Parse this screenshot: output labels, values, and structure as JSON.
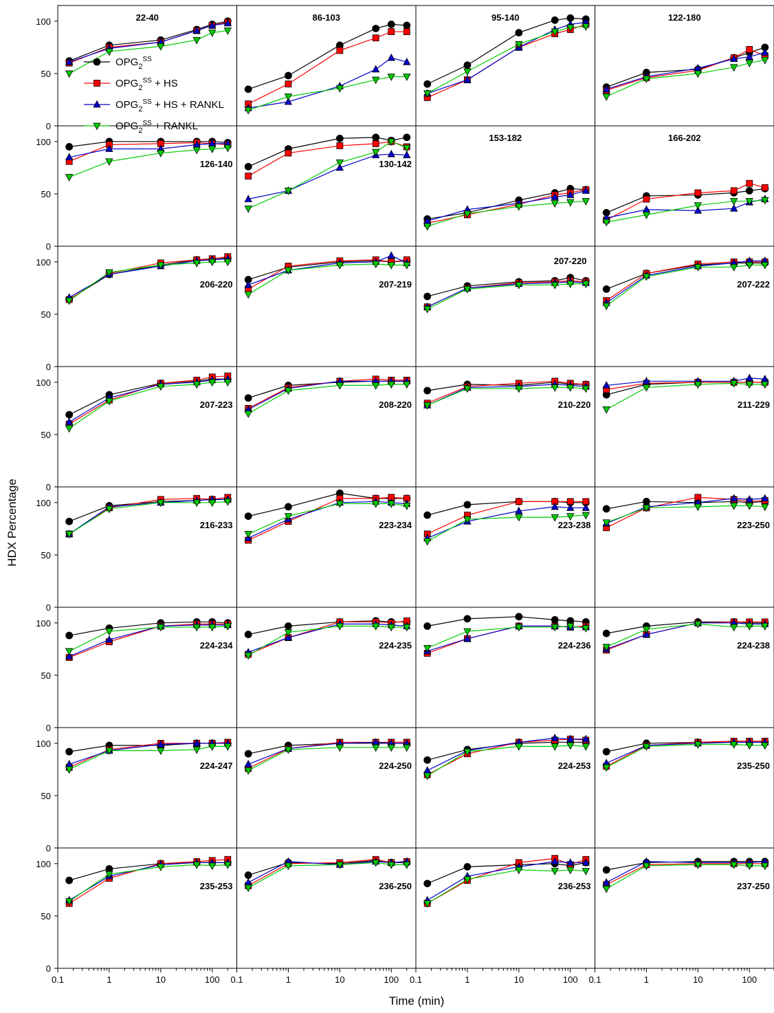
{
  "figure": {
    "ylabel": "HDX Percentage",
    "xlabel": "Time (min)"
  },
  "colors": {
    "OPG": "#000000",
    "OPG_HS": "#ff0000",
    "OPG_HS_RANKL": "#0000cc",
    "OPG_RANKL": "#00cc00"
  },
  "legend": [
    {
      "key": "OPG",
      "base": "OPG",
      "sub": "2",
      "sup": "SS",
      "suffix": "",
      "marker": "circle"
    },
    {
      "key": "OPG_HS",
      "base": "OPG",
      "sub": "2",
      "sup": "SS",
      "suffix": " + HS",
      "marker": "square"
    },
    {
      "key": "OPG_HS_RANKL",
      "base": "OPG",
      "sub": "2",
      "sup": "SS",
      "suffix": " + HS + RANKL",
      "marker": "triangle-up"
    },
    {
      "key": "OPG_RANKL",
      "base": "OPG",
      "sub": "2",
      "sup": "SS",
      "suffix": " + RANKL",
      "marker": "triangle-down"
    }
  ],
  "chart_data": {
    "type": "line",
    "layout": "grid 8 rows x 4 columns, shared axes",
    "x_scale": "log",
    "xlim": [
      0.1,
      300
    ],
    "x_ticks": [
      "0.1",
      "1",
      "10",
      "100"
    ],
    "ylim": [
      0,
      115
    ],
    "y_ticks": [
      "0",
      "50",
      "100"
    ],
    "x": [
      0.167,
      1,
      10,
      50,
      100,
      200
    ],
    "series_names": [
      "OPG_2^SS",
      "OPG_2^SS + HS",
      "OPG_2^SS + HS + RANKL",
      "OPG_2^SS + RANKL"
    ],
    "panels": [
      {
        "label": "22-40",
        "label_pos": "top",
        "OPG": [
          62,
          77,
          82,
          92,
          97,
          100
        ],
        "OPG_HS": [
          60,
          75,
          80,
          91,
          96,
          99
        ],
        "OPG_HS_RANKL": [
          61,
          74,
          80,
          91,
          96,
          98
        ],
        "OPG_RANKL": [
          50,
          71,
          76,
          82,
          89,
          91
        ]
      },
      {
        "label": "86-103",
        "label_pos": "top",
        "OPG": [
          35,
          48,
          77,
          93,
          97,
          96
        ],
        "OPG_HS": [
          21,
          40,
          72,
          84,
          90,
          90
        ],
        "OPG_HS_RANKL": [
          17,
          23,
          38,
          54,
          65,
          61
        ],
        "OPG_RANKL": [
          15,
          28,
          36,
          44,
          47,
          47
        ]
      },
      {
        "label": "95-140",
        "label_pos": "top",
        "OPG": [
          40,
          58,
          89,
          101,
          103,
          102
        ],
        "OPG_HS": [
          27,
          44,
          75,
          88,
          92,
          97
        ],
        "OPG_HS_RANKL": [
          31,
          44,
          75,
          92,
          97,
          99
        ],
        "OPG_RANKL": [
          31,
          52,
          78,
          90,
          94,
          95
        ]
      },
      {
        "label": "122-180",
        "label_pos": "top",
        "OPG": [
          37,
          51,
          54,
          65,
          70,
          75
        ],
        "OPG_HS": [
          34,
          46,
          53,
          65,
          73,
          67
        ],
        "OPG_HS_RANKL": [
          35,
          47,
          55,
          64,
          66,
          70
        ],
        "OPG_RANKL": [
          28,
          45,
          50,
          56,
          60,
          63
        ]
      },
      {
        "label": "126-140",
        "label_pos": "mid-right",
        "OPG": [
          95,
          100,
          100,
          100,
          100,
          99
        ],
        "OPG_HS": [
          81,
          97,
          98,
          99,
          98,
          97
        ],
        "OPG_HS_RANKL": [
          85,
          93,
          93,
          97,
          98,
          98
        ],
        "OPG_RANKL": [
          66,
          81,
          89,
          92,
          93,
          94
        ]
      },
      {
        "label": "130-142",
        "label_pos": "mid-right",
        "OPG": [
          76,
          93,
          103,
          104,
          101,
          104
        ],
        "OPG_HS": [
          67,
          89,
          96,
          98,
          100,
          95
        ],
        "OPG_HS_RANKL": [
          45,
          53,
          75,
          87,
          88,
          87
        ],
        "OPG_RANKL": [
          36,
          53,
          80,
          90,
          100,
          94
        ]
      },
      {
        "label": "153-182",
        "label_pos": "top",
        "OPG": [
          26,
          32,
          44,
          51,
          55,
          54
        ],
        "OPG_HS": [
          22,
          30,
          40,
          49,
          51,
          54
        ],
        "OPG_HS_RANKL": [
          24,
          35,
          41,
          47,
          49,
          53
        ],
        "OPG_RANKL": [
          19,
          31,
          38,
          41,
          42,
          43
        ]
      },
      {
        "label": "166-202",
        "label_pos": "top",
        "OPG": [
          32,
          48,
          49,
          51,
          53,
          55
        ],
        "OPG_HS": [
          25,
          45,
          51,
          53,
          60,
          56
        ],
        "OPG_HS_RANKL": [
          27,
          35,
          34,
          36,
          42,
          45
        ],
        "OPG_RANKL": [
          23,
          30,
          39,
          43,
          43,
          44
        ]
      },
      {
        "label": "206-220",
        "label_pos": "mid-right",
        "OPG": [
          64,
          88,
          97,
          102,
          102,
          104
        ],
        "OPG_HS": [
          64,
          89,
          99,
          102,
          103,
          105
        ],
        "OPG_HS_RANKL": [
          66,
          88,
          96,
          101,
          102,
          103
        ],
        "OPG_RANKL": [
          63,
          90,
          97,
          99,
          100,
          100
        ]
      },
      {
        "label": "207-219",
        "label_pos": "mid-right",
        "OPG": [
          83,
          95,
          100,
          101,
          100,
          101
        ],
        "OPG_HS": [
          74,
          96,
          101,
          102,
          100,
          102
        ],
        "OPG_HS_RANKL": [
          78,
          92,
          99,
          100,
          106,
          99
        ],
        "OPG_RANKL": [
          69,
          92,
          97,
          98,
          97,
          97
        ]
      },
      {
        "label": "207-220",
        "label_pos": "top-right",
        "OPG": [
          67,
          77,
          81,
          82,
          85,
          82
        ],
        "OPG_HS": [
          57,
          75,
          80,
          81,
          82,
          81
        ],
        "OPG_HS_RANKL": [
          57,
          75,
          79,
          80,
          81,
          80
        ],
        "OPG_RANKL": [
          55,
          74,
          78,
          78,
          79,
          79
        ]
      },
      {
        "label": "207-222",
        "label_pos": "mid-right",
        "OPG": [
          74,
          89,
          97,
          99,
          99,
          99
        ],
        "OPG_HS": [
          63,
          89,
          98,
          100,
          100,
          100
        ],
        "OPG_HS_RANKL": [
          61,
          87,
          96,
          99,
          101,
          101
        ],
        "OPG_RANKL": [
          58,
          86,
          95,
          95,
          97,
          97
        ]
      },
      {
        "label": "207-223",
        "label_pos": "mid-right",
        "OPG": [
          69,
          88,
          99,
          101,
          103,
          103
        ],
        "OPG_HS": [
          60,
          83,
          99,
          102,
          105,
          106
        ],
        "OPG_HS_RANKL": [
          62,
          85,
          98,
          100,
          102,
          103
        ],
        "OPG_RANKL": [
          56,
          82,
          96,
          98,
          100,
          100
        ]
      },
      {
        "label": "208-220",
        "label_pos": "mid-right",
        "OPG": [
          85,
          97,
          100,
          101,
          101,
          101
        ],
        "OPG_HS": [
          75,
          95,
          101,
          103,
          102,
          102
        ],
        "OPG_HS_RANKL": [
          74,
          94,
          101,
          101,
          101,
          101
        ],
        "OPG_RANKL": [
          70,
          92,
          97,
          97,
          98,
          98
        ]
      },
      {
        "label": "210-220",
        "label_pos": "mid-right",
        "OPG": [
          92,
          98,
          97,
          100,
          98,
          98
        ],
        "OPG_HS": [
          80,
          96,
          99,
          101,
          99,
          98
        ],
        "OPG_HS_RANKL": [
          78,
          95,
          96,
          98,
          97,
          96
        ],
        "OPG_RANKL": [
          78,
          94,
          94,
          95,
          95,
          94
        ]
      },
      {
        "label": "211-229",
        "label_pos": "mid-right",
        "OPG": [
          88,
          98,
          100,
          100,
          100,
          100
        ],
        "OPG_HS": [
          93,
          99,
          100,
          100,
          100,
          100
        ],
        "OPG_HS_RANKL": [
          97,
          101,
          101,
          101,
          104,
          103
        ],
        "OPG_RANKL": [
          74,
          95,
          98,
          99,
          98,
          98
        ]
      },
      {
        "label": "216-233",
        "label_pos": "mid-right",
        "OPG": [
          82,
          97,
          101,
          102,
          103,
          103
        ],
        "OPG_HS": [
          70,
          95,
          103,
          104,
          103,
          105
        ],
        "OPG_HS_RANKL": [
          70,
          96,
          100,
          102,
          103,
          103
        ],
        "OPG_RANKL": [
          70,
          94,
          100,
          100,
          100,
          101
        ]
      },
      {
        "label": "223-234",
        "label_pos": "mid-right",
        "OPG": [
          87,
          96,
          109,
          104,
          104,
          104
        ],
        "OPG_HS": [
          64,
          82,
          104,
          104,
          105,
          104
        ],
        "OPG_HS_RANKL": [
          66,
          84,
          100,
          101,
          100,
          99
        ],
        "OPG_RANKL": [
          70,
          87,
          99,
          99,
          99,
          97
        ]
      },
      {
        "label": "223-238",
        "label_pos": "mid-right",
        "OPG": [
          88,
          98,
          101,
          101,
          100,
          100
        ],
        "OPG_HS": [
          70,
          88,
          101,
          101,
          101,
          101
        ],
        "OPG_HS_RANKL": [
          66,
          82,
          92,
          96,
          95,
          95
        ],
        "OPG_RANKL": [
          63,
          84,
          86,
          86,
          87,
          88
        ]
      },
      {
        "label": "223-250",
        "label_pos": "mid-right",
        "OPG": [
          94,
          101,
          100,
          101,
          100,
          101
        ],
        "OPG_HS": [
          76,
          95,
          105,
          103,
          101,
          102
        ],
        "OPG_HS_RANKL": [
          80,
          96,
          100,
          104,
          103,
          104
        ],
        "OPG_RANKL": [
          81,
          95,
          96,
          97,
          97,
          96
        ]
      },
      {
        "label": "224-234",
        "label_pos": "mid-right",
        "OPG": [
          88,
          95,
          100,
          101,
          101,
          100
        ],
        "OPG_HS": [
          67,
          82,
          97,
          99,
          99,
          99
        ],
        "OPG_HS_RANKL": [
          68,
          84,
          97,
          98,
          98,
          98
        ],
        "OPG_RANKL": [
          73,
          92,
          96,
          96,
          96,
          97
        ]
      },
      {
        "label": "224-235",
        "label_pos": "mid-right",
        "OPG": [
          89,
          97,
          101,
          102,
          101,
          101
        ],
        "OPG_HS": [
          70,
          86,
          101,
          101,
          100,
          102
        ],
        "OPG_HS_RANKL": [
          72,
          86,
          99,
          99,
          98,
          97
        ],
        "OPG_RANKL": [
          69,
          91,
          97,
          97,
          96,
          96
        ]
      },
      {
        "label": "224-236",
        "label_pos": "mid-right",
        "OPG": [
          97,
          104,
          106,
          103,
          102,
          101
        ],
        "OPG_HS": [
          71,
          85,
          97,
          97,
          96,
          97
        ],
        "OPG_HS_RANKL": [
          73,
          85,
          97,
          97,
          96,
          96
        ],
        "OPG_RANKL": [
          76,
          92,
          96,
          96,
          97,
          95
        ]
      },
      {
        "label": "224-238",
        "label_pos": "mid-right",
        "OPG": [
          90,
          97,
          101,
          101,
          100,
          100
        ],
        "OPG_HS": [
          74,
          89,
          100,
          101,
          101,
          101
        ],
        "OPG_HS_RANKL": [
          75,
          89,
          100,
          100,
          99,
          99
        ],
        "OPG_RANKL": [
          77,
          94,
          99,
          96,
          97,
          97
        ]
      },
      {
        "label": "224-247",
        "label_pos": "mid-right",
        "OPG": [
          92,
          98,
          98,
          100,
          100,
          100
        ],
        "OPG_HS": [
          77,
          94,
          100,
          100,
          100,
          101
        ],
        "OPG_HS_RANKL": [
          80,
          93,
          99,
          100,
          100,
          100
        ],
        "OPG_RANKL": [
          75,
          93,
          93,
          94,
          97,
          97
        ]
      },
      {
        "label": "224-250",
        "label_pos": "mid-right",
        "OPG": [
          90,
          98,
          100,
          100,
          100,
          100
        ],
        "OPG_HS": [
          76,
          95,
          101,
          101,
          101,
          101
        ],
        "OPG_HS_RANKL": [
          80,
          95,
          100,
          101,
          100,
          100
        ],
        "OPG_RANKL": [
          74,
          94,
          96,
          96,
          96,
          96
        ]
      },
      {
        "label": "224-253",
        "label_pos": "mid-right",
        "OPG": [
          84,
          94,
          100,
          101,
          101,
          101
        ],
        "OPG_HS": [
          70,
          90,
          101,
          103,
          104,
          103
        ],
        "OPG_HS_RANKL": [
          74,
          93,
          101,
          105,
          104,
          104
        ],
        "OPG_RANKL": [
          69,
          92,
          97,
          97,
          98,
          97
        ]
      },
      {
        "label": "235-250",
        "label_pos": "mid-right",
        "OPG": [
          92,
          100,
          101,
          101,
          101,
          101
        ],
        "OPG_HS": [
          78,
          98,
          101,
          102,
          102,
          102
        ],
        "OPG_HS_RANKL": [
          81,
          98,
          100,
          101,
          101,
          101
        ],
        "OPG_RANKL": [
          77,
          97,
          99,
          99,
          98,
          98
        ]
      },
      {
        "label": "235-253",
        "label_pos": "mid-right",
        "OPG": [
          84,
          95,
          100,
          101,
          101,
          101
        ],
        "OPG_HS": [
          62,
          86,
          100,
          102,
          103,
          104
        ],
        "OPG_HS_RANKL": [
          65,
          88,
          99,
          101,
          101,
          101
        ],
        "OPG_RANKL": [
          64,
          90,
          97,
          99,
          98,
          99
        ]
      },
      {
        "label": "236-250",
        "label_pos": "mid-right",
        "OPG": [
          89,
          101,
          100,
          103,
          101,
          101
        ],
        "OPG_HS": [
          79,
          100,
          101,
          104,
          101,
          102
        ],
        "OPG_HS_RANKL": [
          82,
          102,
          99,
          102,
          101,
          102
        ],
        "OPG_RANKL": [
          77,
          98,
          99,
          101,
          99,
          99
        ]
      },
      {
        "label": "236-253",
        "label_pos": "mid-right",
        "OPG": [
          81,
          97,
          99,
          100,
          98,
          101
        ],
        "OPG_HS": [
          62,
          84,
          101,
          105,
          99,
          104
        ],
        "OPG_HS_RANKL": [
          65,
          88,
          97,
          102,
          101,
          101
        ],
        "OPG_RANKL": [
          62,
          85,
          94,
          93,
          94,
          93
        ]
      },
      {
        "label": "237-250",
        "label_pos": "mid-right",
        "OPG": [
          94,
          101,
          102,
          102,
          102,
          102
        ],
        "OPG_HS": [
          80,
          99,
          100,
          100,
          100,
          100
        ],
        "OPG_HS_RANKL": [
          82,
          102,
          101,
          101,
          101,
          102
        ],
        "OPG_RANKL": [
          76,
          98,
          99,
          99,
          98,
          98
        ]
      }
    ]
  }
}
